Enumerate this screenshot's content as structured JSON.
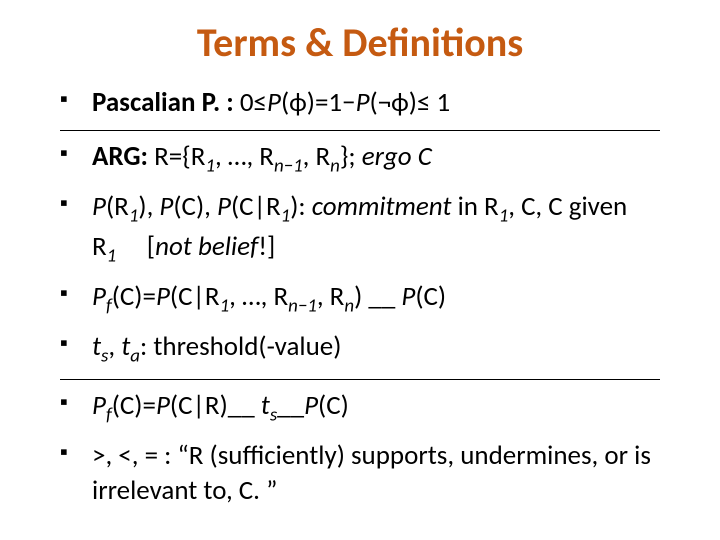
{
  "title": {
    "text": "Terms & Definitions",
    "color": "#c55a11",
    "fontsize": 40,
    "fontweight": 700
  },
  "body": {
    "fontsize": 27,
    "color": "#000000",
    "bullet_color": "#000000"
  },
  "rules": {
    "color": "#000000",
    "after_item_indices": [
      0,
      4
    ]
  },
  "items": [
    {
      "html": "<span class='bold'>Pascalian P. :</span> 0≤<span class='italic'>P</span>(ϕ)=1−<span class='italic'>P</span>(¬ϕ)≤ 1"
    },
    {
      "html": "<span class='bold'>ARG:</span> R={R<sub>1</sub>, …, R<sub>n−1</sub>, R<sub>n</sub>}; <span class='italic'>ergo C</span>"
    },
    {
      "html": "<span class='italic'>P</span>(R<sub>1</sub>), <span class='italic'>P</span>(C), <span class='italic'>P</span>(C|R<sub>1</sub>): <span class='italic'>commitment</span> in R<sub>1</sub>, C, C given R<sub>1</sub>&nbsp;&nbsp;&nbsp;&nbsp; [<span class='italic'>not belief</span>!]"
    },
    {
      "html": "<span class='italic'>P<sub>f</sub></span>(C)=<span class='italic'>P</span>(C|R<sub>1</sub>, …, R<sub>n−1</sub>, R<sub>n</sub>) __ <span class='italic'>P</span>(C)"
    },
    {
      "html": "<span class='italic'>t</span><sub>s</sub>, <span class='italic'>t</span><sub>a</sub>: threshold(-value)"
    },
    {
      "html": "<span class='italic'>P<sub>f</sub></span>(C)=<span class='italic'>P</span>(C|R)__ <span class='italic'>t</span><sub>s</sub>__<span class='italic'>P</span>(C)"
    },
    {
      "html": "&gt;, &lt;, = : “R (sufficiently) supports, undermines, or is irrelevant to, C. ”"
    }
  ]
}
